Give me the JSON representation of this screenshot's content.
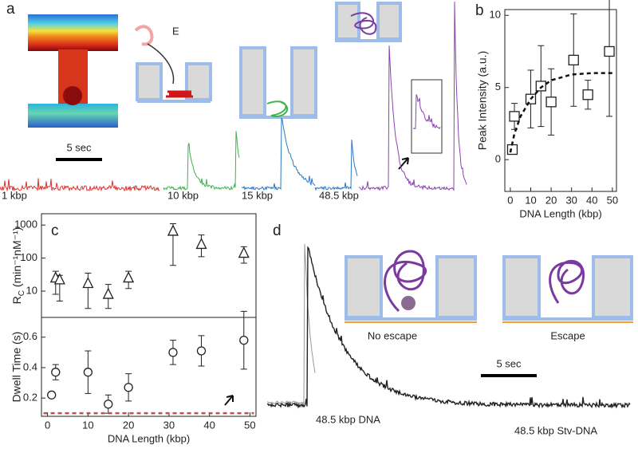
{
  "panel_labels": [
    "a",
    "b",
    "c",
    "d"
  ],
  "panel_a": {
    "field_label": "E",
    "scale_bar": "5 sec",
    "trace_labels": [
      "1 kbp",
      "10 kbp",
      "15 kbp",
      "48.5 kbp"
    ]
  },
  "panel_d": {
    "schematic_labels": [
      "No escape",
      "Escape"
    ],
    "scale_bar": "5 sec",
    "trace_labels": [
      "48.5 kbp DNA",
      "48.5 kbp Stv-DNA"
    ]
  },
  "chart_data": [
    {
      "type": "scatter",
      "xlabel": "DNA Length (kbp)",
      "ylabel": "Peak Intensity (a.u.)",
      "xlim": [
        -2.7,
        52
      ],
      "ylim": [
        -2.2,
        10.4
      ],
      "xticks": [
        0,
        10,
        20,
        30,
        40,
        50
      ],
      "yticks": [
        0,
        5,
        10
      ],
      "series": [
        {
          "marker": "square",
          "color": "#222222",
          "x": [
            1,
            2,
            10,
            15,
            20,
            31,
            38,
            48.5
          ],
          "values": [
            0.7,
            3.0,
            4.2,
            5.1,
            4.0,
            6.9,
            4.5,
            7.5
          ],
          "error": [
            0.2,
            0.9,
            2.0,
            2.8,
            2.3,
            3.2,
            1.0,
            4.5
          ]
        },
        {
          "style": "dashed",
          "color": "#111111",
          "x": [
            0,
            2,
            5,
            10,
            15,
            20,
            30,
            40,
            50
          ],
          "values": [
            0.5,
            1.8,
            3.0,
            4.2,
            5.0,
            5.5,
            5.9,
            6.0,
            6.0
          ]
        }
      ]
    },
    {
      "type": "scatter",
      "ylabel": {
        "main": "R",
        "sub": "C",
        "unit": " (min⁻¹nM⁻¹)"
      },
      "yscale": "log",
      "xlim": [
        -1.5,
        51.5
      ],
      "ylim": [
        1.6,
        2200
      ],
      "yticks": [
        10,
        100,
        1000
      ],
      "series": [
        {
          "marker": "triangle",
          "color": "#222222",
          "x": [
            2,
            3,
            10,
            15,
            20,
            31,
            38,
            48.5
          ],
          "values": [
            25,
            22,
            17,
            8,
            25,
            650,
            260,
            140
          ],
          "lower": [
            8,
            5,
            3,
            3,
            12,
            60,
            110,
            70
          ],
          "upper": [
            40,
            30,
            35,
            16,
            40,
            1100,
            500,
            220
          ]
        }
      ]
    },
    {
      "type": "scatter",
      "xlabel": "DNA Length (kbp)",
      "ylabel": "Dwell Time (s)",
      "xlim": [
        -1.5,
        51.5
      ],
      "ylim": [
        0.08,
        0.73
      ],
      "xticks": [
        0,
        10,
        20,
        30,
        40,
        50
      ],
      "yticks": [
        0.2,
        0.4,
        0.6
      ],
      "series": [
        {
          "marker": "circle",
          "color": "#222222",
          "x": [
            1,
            2,
            10,
            15,
            20,
            31,
            38,
            48.5
          ],
          "values": [
            0.22,
            0.37,
            0.37,
            0.16,
            0.27,
            0.5,
            0.51,
            0.58
          ],
          "error": [
            0.01,
            0.05,
            0.14,
            0.06,
            0.09,
            0.08,
            0.1,
            0.19
          ]
        },
        {
          "style": "dashed",
          "color": "#c0504d",
          "x": [
            -1,
            51
          ],
          "values": [
            0.1,
            0.1
          ]
        }
      ]
    }
  ]
}
